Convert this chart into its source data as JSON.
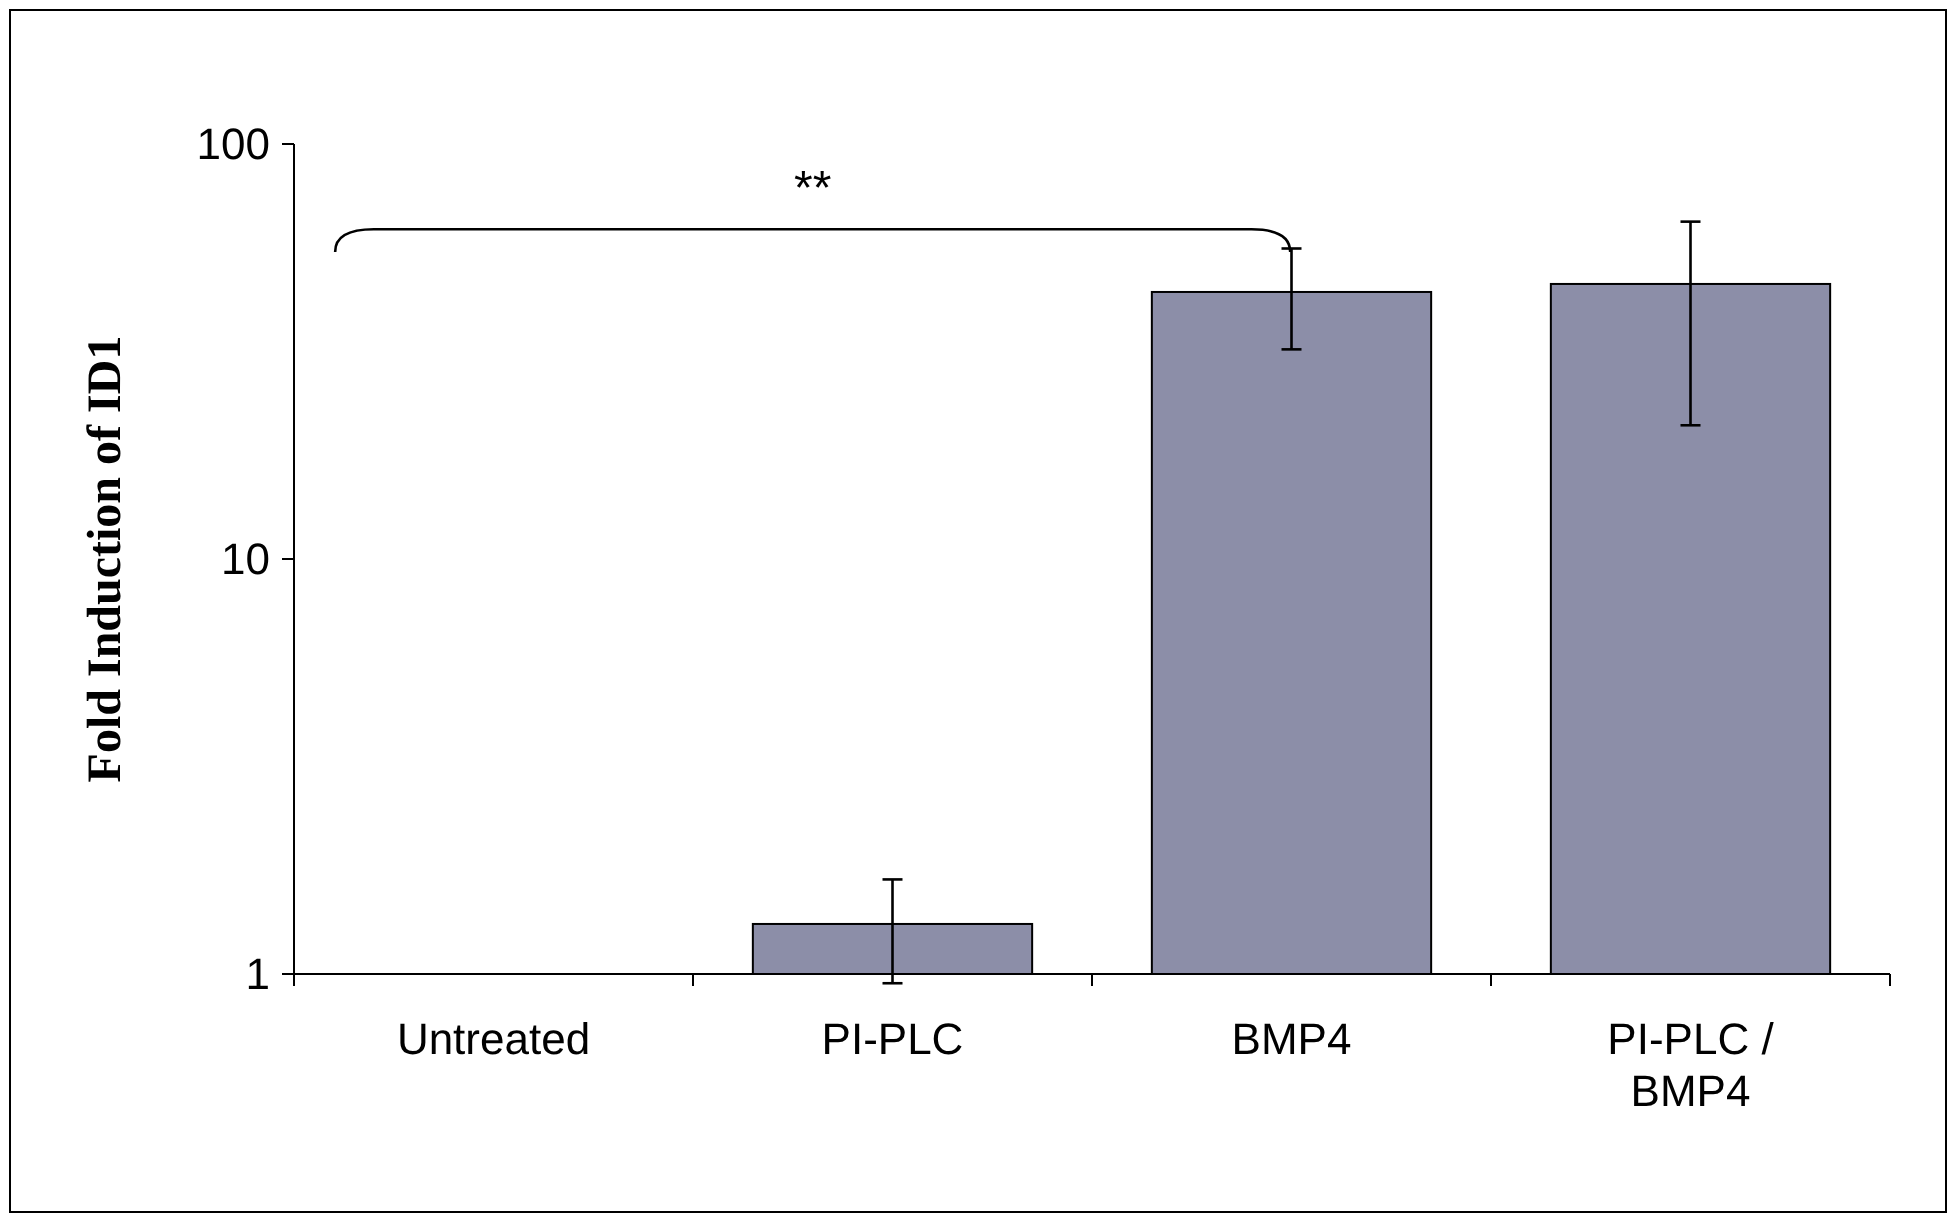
{
  "chart_data": {
    "type": "bar",
    "ylabel": "Fold Induction of ID1",
    "categories": [
      "Untreated",
      "PI-PLC",
      "BMP4",
      "PI-PLC / BMP4"
    ],
    "values": [
      1,
      1.32,
      44,
      46
    ],
    "errors": [
      null,
      [
        0.95,
        1.69
      ],
      [
        32,
        56
      ],
      [
        21,
        65
      ]
    ],
    "color": "#8c8ea8",
    "log": true,
    "ylim": [
      1,
      100
    ],
    "yticks": [
      1,
      10,
      100
    ],
    "grid": false,
    "annotations": [
      "**"
    ]
  }
}
